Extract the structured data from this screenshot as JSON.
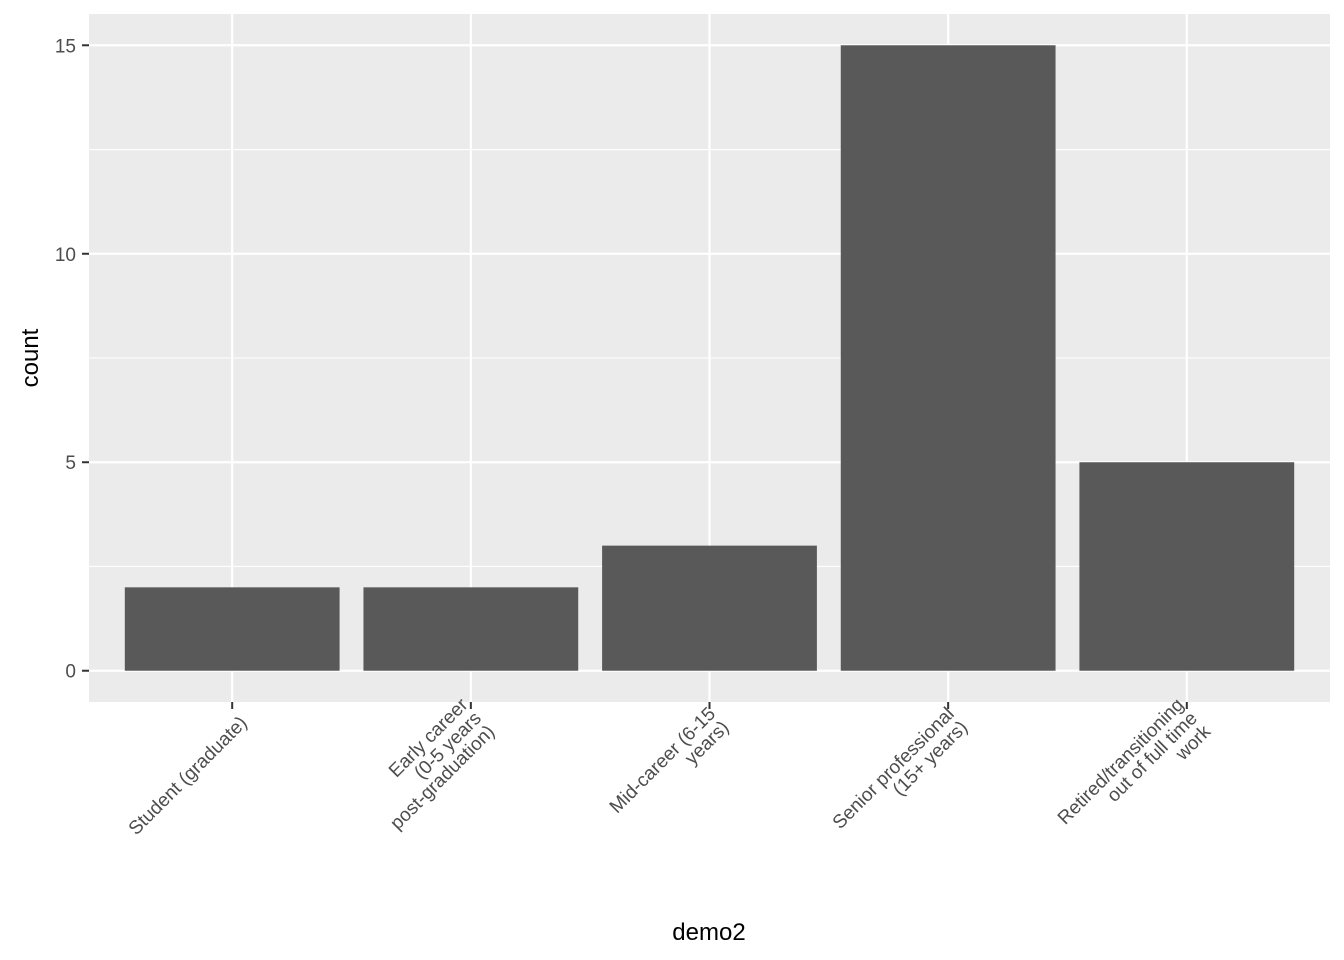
{
  "chart_data": {
    "type": "bar",
    "xlabel": "demo2",
    "ylabel": "count",
    "categories": [
      [
        "Student (graduate)"
      ],
      [
        "Early career",
        "(0-5 years",
        "post-graduation)"
      ],
      [
        "Mid-career (6-15",
        "years)"
      ],
      [
        "Senior professional",
        "(15+ years)"
      ],
      [
        "Retired/transitioning",
        "out of full time",
        "work"
      ]
    ],
    "values": [
      2,
      2,
      3,
      15,
      5
    ],
    "ylim": [
      -0.75,
      15.75
    ],
    "yticks": [
      0,
      5,
      10,
      15
    ],
    "grid": true,
    "colors": {
      "panel": "#ebebeb",
      "grid": "#ffffff",
      "bar": "#595959",
      "tick": "#333333"
    }
  }
}
